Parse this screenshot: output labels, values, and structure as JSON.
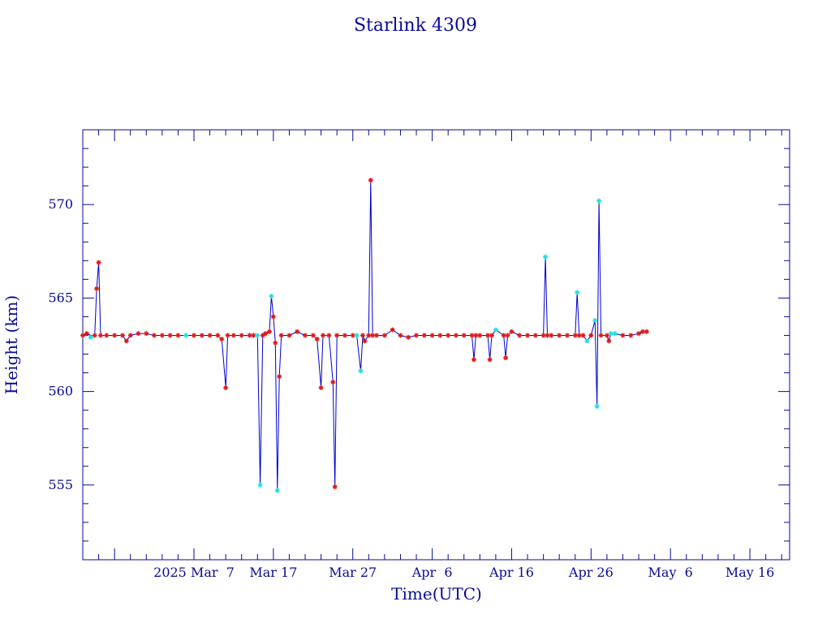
{
  "chart_data": {
    "type": "line",
    "title": "Starlink 4309",
    "xlabel": "Time(UTC)",
    "ylabel": "Height (km)",
    "x_tick_labels": [
      "2025 Mar  7",
      "Mar 17",
      "Mar 27",
      "Apr  6",
      "Apr 16",
      "Apr 26",
      "May  6",
      "May 16"
    ],
    "x_tick_dates": [
      "2025-03-07",
      "2025-03-17",
      "2025-03-27",
      "2025-04-06",
      "2025-04-16",
      "2025-04-26",
      "2025-05-06",
      "2025-05-16"
    ],
    "y_ticks": [
      555,
      560,
      565,
      570
    ],
    "xlim": [
      "2025-02-21",
      "2025-05-21"
    ],
    "ylim": [
      551,
      574
    ],
    "grid": false,
    "colors": {
      "axes": "#0a0a9a",
      "line": "#0000cc",
      "marker_red": "#e01818",
      "marker_cyan": "#20e0e0"
    },
    "series": [
      {
        "values": [
          [
            "2025-02-21T00:00",
            563.0
          ],
          [
            "2025-02-21T12:00",
            563.1
          ],
          [
            "2025-02-22T00:00",
            563.0
          ],
          [
            "2025-02-22T12:00",
            563.0
          ],
          [
            "2025-02-22T18:00",
            565.5
          ],
          [
            "2025-02-23T00:00",
            566.9
          ],
          [
            "2025-02-23T06:00",
            563.0
          ],
          [
            "2025-02-24T00:00",
            563.0
          ],
          [
            "2025-02-25T00:00",
            563.0
          ],
          [
            "2025-02-26T00:00",
            563.0
          ],
          [
            "2025-02-26T12:00",
            562.7
          ],
          [
            "2025-02-27T00:00",
            563.0
          ],
          [
            "2025-02-28T00:00",
            563.1
          ],
          [
            "2025-03-01T00:00",
            563.1
          ],
          [
            "2025-03-02T00:00",
            563.0
          ],
          [
            "2025-03-03T00:00",
            563.0
          ],
          [
            "2025-03-04T00:00",
            563.0
          ],
          [
            "2025-03-05T00:00",
            563.0
          ],
          [
            "2025-03-06T00:00",
            563.0
          ],
          [
            "2025-03-07T00:00",
            563.0
          ],
          [
            "2025-03-08T00:00",
            563.0
          ],
          [
            "2025-03-09T00:00",
            563.0
          ],
          [
            "2025-03-10T00:00",
            563.0
          ],
          [
            "2025-03-10T12:00",
            562.8
          ],
          [
            "2025-03-11T00:00",
            560.2
          ],
          [
            "2025-03-11T06:00",
            563.0
          ],
          [
            "2025-03-12T00:00",
            563.0
          ],
          [
            "2025-03-13T00:00",
            563.0
          ],
          [
            "2025-03-14T00:00",
            563.0
          ],
          [
            "2025-03-14T12:00",
            563.0
          ],
          [
            "2025-03-15T00:00",
            563.0
          ],
          [
            "2025-03-15T08:00",
            555.0
          ],
          [
            "2025-03-15T16:00",
            563.0
          ],
          [
            "2025-03-16T00:00",
            563.1
          ],
          [
            "2025-03-16T12:00",
            563.2
          ],
          [
            "2025-03-16T18:00",
            565.1
          ],
          [
            "2025-03-17T00:00",
            564.0
          ],
          [
            "2025-03-17T06:00",
            562.6
          ],
          [
            "2025-03-17T12:00",
            554.7
          ],
          [
            "2025-03-17T18:00",
            560.8
          ],
          [
            "2025-03-18T00:00",
            563.0
          ],
          [
            "2025-03-19T00:00",
            563.0
          ],
          [
            "2025-03-20T00:00",
            563.2
          ],
          [
            "2025-03-21T00:00",
            563.0
          ],
          [
            "2025-03-22T00:00",
            563.0
          ],
          [
            "2025-03-22T12:00",
            562.8
          ],
          [
            "2025-03-23T00:00",
            560.2
          ],
          [
            "2025-03-23T06:00",
            563.0
          ],
          [
            "2025-03-24T00:00",
            563.0
          ],
          [
            "2025-03-24T12:00",
            560.5
          ],
          [
            "2025-03-24T18:00",
            554.9
          ],
          [
            "2025-03-25T00:00",
            563.0
          ],
          [
            "2025-03-26T00:00",
            563.0
          ],
          [
            "2025-03-27T00:00",
            563.0
          ],
          [
            "2025-03-27T12:00",
            563.0
          ],
          [
            "2025-03-28T00:00",
            561.1
          ],
          [
            "2025-03-28T06:00",
            563.0
          ],
          [
            "2025-03-28T12:00",
            562.7
          ],
          [
            "2025-03-29T00:00",
            563.0
          ],
          [
            "2025-03-29T06:00",
            571.3
          ],
          [
            "2025-03-29T12:00",
            563.0
          ],
          [
            "2025-03-30T00:00",
            563.0
          ],
          [
            "2025-03-31T00:00",
            563.0
          ],
          [
            "2025-04-01T00:00",
            563.3
          ],
          [
            "2025-04-02T00:00",
            563.0
          ],
          [
            "2025-04-03T00:00",
            562.9
          ],
          [
            "2025-04-04T00:00",
            563.0
          ],
          [
            "2025-04-05T00:00",
            563.0
          ],
          [
            "2025-04-06T00:00",
            563.0
          ],
          [
            "2025-04-07T00:00",
            563.0
          ],
          [
            "2025-04-08T00:00",
            563.0
          ],
          [
            "2025-04-09T00:00",
            563.0
          ],
          [
            "2025-04-10T00:00",
            563.0
          ],
          [
            "2025-04-11T00:00",
            563.0
          ],
          [
            "2025-04-11T06:00",
            561.7
          ],
          [
            "2025-04-11T12:00",
            563.0
          ],
          [
            "2025-04-12T00:00",
            563.0
          ],
          [
            "2025-04-13T00:00",
            563.0
          ],
          [
            "2025-04-13T06:00",
            561.7
          ],
          [
            "2025-04-13T12:00",
            563.0
          ],
          [
            "2025-04-14T00:00",
            563.3
          ],
          [
            "2025-04-15T00:00",
            563.0
          ],
          [
            "2025-04-15T06:00",
            561.8
          ],
          [
            "2025-04-15T12:00",
            563.0
          ],
          [
            "2025-04-16T00:00",
            563.2
          ],
          [
            "2025-04-17T00:00",
            563.0
          ],
          [
            "2025-04-18T00:00",
            563.0
          ],
          [
            "2025-04-19T00:00",
            563.0
          ],
          [
            "2025-04-20T00:00",
            563.0
          ],
          [
            "2025-04-20T06:00",
            567.2
          ],
          [
            "2025-04-20T12:00",
            563.0
          ],
          [
            "2025-04-21T00:00",
            563.0
          ],
          [
            "2025-04-22T00:00",
            563.0
          ],
          [
            "2025-04-23T00:00",
            563.0
          ],
          [
            "2025-04-24T00:00",
            563.0
          ],
          [
            "2025-04-24T06:00",
            565.3
          ],
          [
            "2025-04-24T12:00",
            563.0
          ],
          [
            "2025-04-25T00:00",
            563.0
          ],
          [
            "2025-04-25T12:00",
            562.7
          ],
          [
            "2025-04-26T00:00",
            563.0
          ],
          [
            "2025-04-26T12:00",
            563.8
          ],
          [
            "2025-04-26T18:00",
            559.2
          ],
          [
            "2025-04-27T00:00",
            570.2
          ],
          [
            "2025-04-27T06:00",
            563.0
          ],
          [
            "2025-04-28T00:00",
            563.0
          ],
          [
            "2025-04-28T06:00",
            562.7
          ],
          [
            "2025-04-28T12:00",
            563.1
          ],
          [
            "2025-04-29T00:00",
            563.1
          ],
          [
            "2025-04-30T00:00",
            563.0
          ],
          [
            "2025-05-01T00:00",
            563.0
          ],
          [
            "2025-05-02T00:00",
            563.1
          ],
          [
            "2025-05-02T12:00",
            563.2
          ],
          [
            "2025-05-03T00:00",
            563.2
          ]
        ],
        "cyan_markers": [
          [
            "2025-02-22T00:00",
            562.9
          ],
          [
            "2025-03-06T00:00",
            563.0
          ],
          [
            "2025-03-15T00:00",
            563.0
          ],
          [
            "2025-03-15T08:00",
            555.0
          ],
          [
            "2025-03-16T18:00",
            565.1
          ],
          [
            "2025-03-17T12:00",
            554.7
          ],
          [
            "2025-03-27T12:00",
            563.0
          ],
          [
            "2025-03-28T00:00",
            561.1
          ],
          [
            "2025-04-14T00:00",
            563.3
          ],
          [
            "2025-04-20T06:00",
            567.2
          ],
          [
            "2025-04-24T06:00",
            565.3
          ],
          [
            "2025-04-25T12:00",
            562.7
          ],
          [
            "2025-04-26T12:00",
            563.8
          ],
          [
            "2025-04-26T18:00",
            559.2
          ],
          [
            "2025-04-27T00:00",
            570.2
          ],
          [
            "2025-04-28T12:00",
            563.1
          ],
          [
            "2025-04-29T00:00",
            563.1
          ]
        ]
      }
    ]
  }
}
